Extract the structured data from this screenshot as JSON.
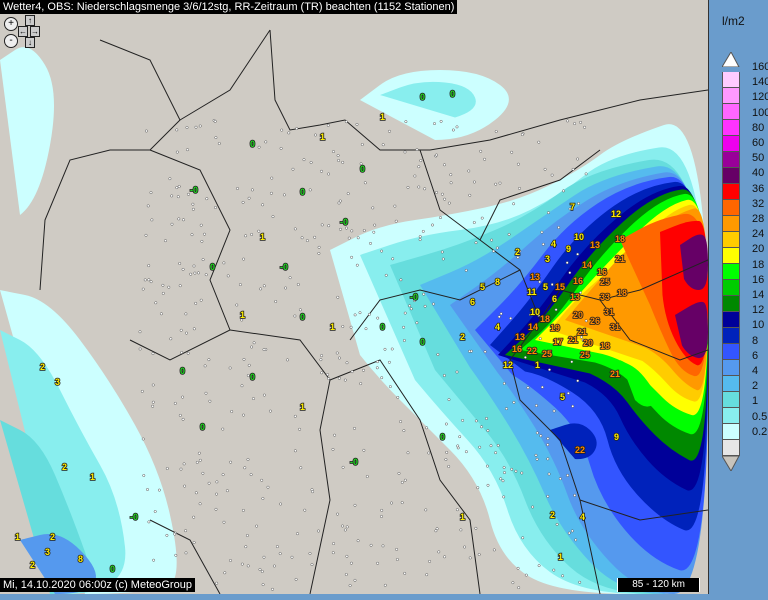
{
  "header": {
    "title": "Wetter4, OBS: Niederschlagsmenge 3/6/12stg, RR-Zeitraum (TR) beachten (1152 Stationen)"
  },
  "footer": {
    "timestamp": "Mi, 14.10.2020 06:00z (c) MeteoGroup",
    "scale": "85 - 120 km"
  },
  "controls": {
    "zoom_in": "+",
    "zoom_out": "-",
    "up": "↑",
    "down": "↓",
    "left": "←",
    "right": "→"
  },
  "legend": {
    "unit": "l/m2",
    "levels": [
      {
        "label": "160",
        "color": "#ffffff"
      },
      {
        "label": "140",
        "color": "#ffccff"
      },
      {
        "label": "120",
        "color": "#ff99ff"
      },
      {
        "label": "100",
        "color": "#ff66ff"
      },
      {
        "label": "80",
        "color": "#ff33ff"
      },
      {
        "label": "60",
        "color": "#ee00ee"
      },
      {
        "label": "50",
        "color": "#990099"
      },
      {
        "label": "40",
        "color": "#660066"
      },
      {
        "label": "36",
        "color": "#ff0000"
      },
      {
        "label": "32",
        "color": "#ff6600"
      },
      {
        "label": "28",
        "color": "#ff9900"
      },
      {
        "label": "24",
        "color": "#ffcc00"
      },
      {
        "label": "20",
        "color": "#ffff00"
      },
      {
        "label": "18",
        "color": "#00ff00"
      },
      {
        "label": "16",
        "color": "#00cc00"
      },
      {
        "label": "14",
        "color": "#008800"
      },
      {
        "label": "12",
        "color": "#000099"
      },
      {
        "label": "10",
        "color": "#0022bb"
      },
      {
        "label": "8",
        "color": "#3355ff"
      },
      {
        "label": "6",
        "color": "#5599ee"
      },
      {
        "label": "4",
        "color": "#55bbee"
      },
      {
        "label": "2",
        "color": "#66dddd"
      },
      {
        "label": "1",
        "color": "#88eeee"
      },
      {
        "label": "0.5",
        "color": "#ccffff"
      },
      {
        "label": "0.2",
        "color": "#e6e6e6"
      }
    ]
  },
  "station_values": [
    "0",
    "-0",
    "1",
    "0",
    "0",
    "-0",
    "1",
    "0",
    "-0",
    "0",
    "1",
    "1",
    "0",
    "-0",
    "0",
    "0",
    "1",
    "0",
    "-0",
    "0",
    "1",
    "2",
    "3",
    "4",
    "5",
    "6",
    "7",
    "9",
    "10",
    "12",
    "13",
    "18",
    "16",
    "21",
    "18",
    "25",
    "16",
    "13",
    "14",
    "33",
    "31",
    "20",
    "21",
    "26",
    "31",
    "20",
    "25",
    "18",
    "17",
    "21",
    "19",
    "18",
    "14",
    "13",
    "16",
    "22",
    "25",
    "12",
    "11",
    "10",
    "13",
    "15",
    "5",
    "6",
    "8",
    "4",
    "2",
    "1",
    "2",
    "3",
    "2",
    "8",
    "3",
    "2",
    "1",
    "2",
    "1",
    "22",
    "21",
    "9",
    "5",
    "2",
    "4",
    "1",
    "0",
    "0",
    "-0",
    "1",
    "0",
    "0"
  ]
}
